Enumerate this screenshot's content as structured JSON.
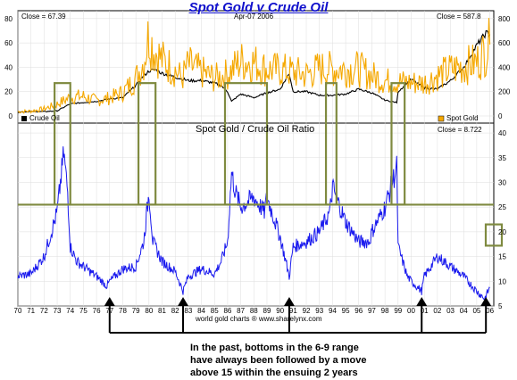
{
  "title": "Spot Gold v Crude Oil",
  "top_panel": {
    "close_left": "Close = 67.39",
    "date": "Apr-07 2006",
    "close_right": "Close = 587.8",
    "legend_oil": "Crude Oil",
    "legend_gold": "Spot Gold",
    "left_ticks": [
      "80",
      "60",
      "40",
      "20",
      "0"
    ],
    "right_ticks": [
      "800",
      "600",
      "400",
      "200",
      "0"
    ]
  },
  "bottom_panel": {
    "title": "Spot Gold  /  Crude Oil Ratio",
    "close": "Close = 8.722",
    "ticks": [
      "40",
      "35",
      "30",
      "25",
      "20",
      "15",
      "10",
      "5"
    ]
  },
  "x_ticks": [
    "70",
    "71",
    "72",
    "73",
    "74",
    "75",
    "76",
    "77",
    "78",
    "79",
    "80",
    "81",
    "82",
    "83",
    "84",
    "85",
    "86",
    "87",
    "88",
    "89",
    "90",
    "91",
    "92",
    "93",
    "94",
    "95",
    "96",
    "97",
    "98",
    "99",
    "00",
    "01",
    "02",
    "03",
    "04",
    "05",
    "06"
  ],
  "credit": "world gold charts ® www.sharelynx.com",
  "annotation": [
    "In the past, bottoms in the 6-9 range",
    "have always been followed by a move",
    "above 15 within the ensuing 2 years"
  ],
  "colors": {
    "oil": "#000000",
    "gold": "#f5a800",
    "ratio": "#1a1aee",
    "box": "#7f8a40",
    "title": "#1010cc"
  },
  "chart_data": [
    {
      "type": "line",
      "title": "Spot Gold v Crude Oil",
      "xlim": [
        1970,
        2006.3
      ],
      "series": [
        {
          "name": "Crude Oil",
          "axis": "left",
          "ylim": [
            0,
            85
          ],
          "x": [
            1970,
            1971,
            1972,
            1973,
            1974,
            1975,
            1976,
            1977,
            1978,
            1979,
            1979.5,
            1980,
            1980.5,
            1981,
            1982,
            1983,
            1984,
            1985,
            1985.5,
            1986,
            1986.3,
            1987,
            1988,
            1989,
            1990,
            1990.7,
            1991,
            1992,
            1993,
            1994,
            1995,
            1996,
            1997,
            1998,
            1998.9,
            1999,
            2000,
            2001,
            2002,
            2003,
            2004,
            2005,
            2005.7,
            2006
          ],
          "values": [
            3.2,
            3.6,
            3.6,
            4.2,
            10,
            11,
            12,
            14,
            15,
            25,
            32,
            37,
            38,
            35,
            32,
            29,
            29,
            27,
            25,
            20,
            12,
            18,
            15,
            19,
            22,
            35,
            20,
            20,
            17,
            17,
            18,
            22,
            19,
            13,
            11,
            20,
            30,
            23,
            22,
            29,
            40,
            58,
            68,
            67
          ]
        },
        {
          "name": "Spot Gold",
          "axis": "right",
          "ylim": [
            0,
            850
          ],
          "x": [
            1970,
            1971,
            1972,
            1973,
            1974,
            1975,
            1976,
            1977,
            1978,
            1979,
            1979.6,
            1980,
            1980.3,
            1981,
            1982,
            1982.5,
            1983,
            1984,
            1985,
            1986,
            1987,
            1988,
            1989,
            1990,
            1991,
            1992,
            1993,
            1994,
            1995,
            1996,
            1997,
            1998,
            1999,
            2000,
            2001,
            2002,
            2003,
            2004,
            2005,
            2006
          ],
          "values": [
            36,
            40,
            58,
            97,
            154,
            161,
            125,
            148,
            193,
            306,
            450,
            675,
            560,
            460,
            375,
            310,
            420,
            360,
            310,
            345,
            450,
            440,
            380,
            380,
            360,
            340,
            390,
            385,
            385,
            388,
            330,
            290,
            280,
            275,
            270,
            330,
            380,
            410,
            440,
            587
          ]
        }
      ]
    },
    {
      "type": "line",
      "title": "Spot Gold  /  Crude Oil Ratio",
      "xlim": [
        1970,
        2006.3
      ],
      "ylim": [
        5,
        42
      ],
      "series": [
        {
          "name": "Spot Gold  /  Crude Oil Ratio",
          "x": [
            1970,
            1971,
            1972,
            1973,
            1973.5,
            1973.8,
            1974,
            1974.5,
            1975,
            1976,
            1976.8,
            1977,
            1978,
            1979,
            1979.6,
            1980,
            1980.3,
            1981,
            1982,
            1982.6,
            1983,
            1984,
            1985,
            1985.5,
            1986,
            1986.3,
            1986.6,
            1987,
            1988,
            1988.8,
            1989,
            1990,
            1990.7,
            1991,
            1992,
            1993,
            1993.8,
            1994,
            1995,
            1996,
            1996.8,
            1997,
            1998,
            1998.9,
            1999,
            1999.7,
            2000,
            2000.8,
            2001,
            2002,
            2003,
            2004,
            2005,
            2005.6,
            2006
          ],
          "values": [
            11,
            11.5,
            15,
            24,
            36,
            28,
            17,
            14,
            13,
            11,
            9,
            10,
            12.5,
            13,
            18,
            28,
            18,
            14,
            12,
            8,
            11,
            12.5,
            11.5,
            14,
            18,
            32,
            28,
            25,
            27,
            24,
            27,
            19,
            11,
            17,
            18,
            20,
            24,
            29,
            22,
            18,
            18,
            20,
            25,
            33,
            17,
            11,
            10,
            8,
            11,
            15,
            13,
            11,
            8,
            6.5,
            8.7
          ]
        }
      ]
    }
  ]
}
